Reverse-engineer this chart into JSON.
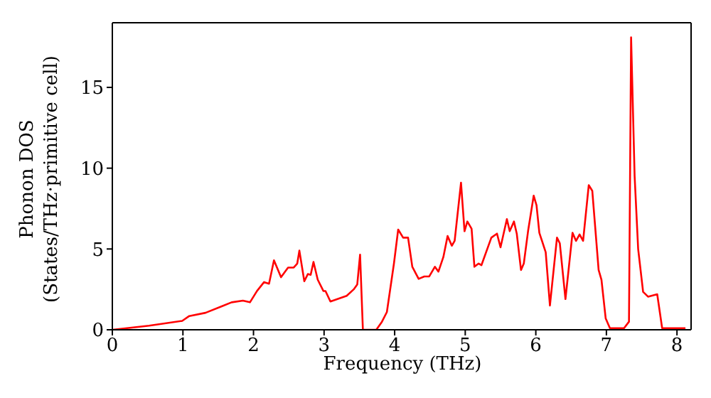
{
  "chart_data": {
    "type": "line",
    "xlabel": "Frequency (THz)",
    "ylabel": "Phonon DOS\n(States/THz·primitive cell)",
    "x": [
      0,
      0.52,
      0.99,
      1.09,
      1.32,
      1.55,
      1.69,
      1.85,
      1.95,
      2.05,
      2.15,
      2.22,
      2.29,
      2.39,
      2.49,
      2.57,
      2.62,
      2.65,
      2.72,
      2.77,
      2.81,
      2.85,
      2.91,
      2.99,
      3.02,
      3.09,
      3.19,
      3.32,
      3.42,
      3.47,
      3.51,
      3.55,
      3.74,
      3.82,
      3.89,
      3.99,
      4.05,
      4.12,
      4.19,
      4.25,
      4.34,
      4.42,
      4.49,
      4.57,
      4.62,
      4.69,
      4.75,
      4.81,
      4.85,
      4.94,
      4.99,
      5.03,
      5.09,
      5.13,
      5.19,
      5.23,
      5.37,
      5.45,
      5.5,
      5.59,
      5.63,
      5.69,
      5.73,
      5.79,
      5.83,
      5.89,
      5.97,
      6.01,
      6.05,
      6.14,
      6.2,
      6.3,
      6.34,
      6.42,
      6.52,
      6.57,
      6.62,
      6.67,
      6.75,
      6.8,
      6.89,
      6.93,
      6.99,
      7.05,
      7.25,
      7.32,
      7.35,
      7.4,
      7.45,
      7.52,
      7.59,
      7.72,
      7.79,
      8.12
    ],
    "series": [
      {
        "color": "#ff0000",
        "values": [
          0,
          0.25,
          0.55,
          0.85,
          1.05,
          1.45,
          1.7,
          1.8,
          1.7,
          2.4,
          2.95,
          2.85,
          4.3,
          3.25,
          3.85,
          3.85,
          4.1,
          4.9,
          3.0,
          3.45,
          3.4,
          4.2,
          3.1,
          2.4,
          2.4,
          1.75,
          1.9,
          2.1,
          2.5,
          2.8,
          4.65,
          0,
          0,
          0.5,
          1.1,
          4.1,
          6.2,
          5.7,
          5.7,
          3.9,
          3.15,
          3.3,
          3.3,
          3.9,
          3.6,
          4.5,
          5.8,
          5.2,
          5.5,
          9.1,
          6.1,
          6.7,
          6.25,
          3.9,
          4.1,
          4.0,
          5.7,
          5.95,
          5.1,
          6.85,
          6.1,
          6.7,
          5.95,
          3.7,
          4.1,
          6.1,
          8.3,
          7.7,
          6.0,
          4.8,
          1.5,
          5.7,
          5.35,
          1.9,
          6.0,
          5.5,
          5.9,
          5.5,
          8.95,
          8.6,
          3.7,
          3.1,
          0.7,
          0.1,
          0.1,
          0.5,
          18.1,
          9.5,
          5.0,
          2.35,
          2.05,
          2.2,
          0.1,
          0.1
        ]
      }
    ],
    "xlim": [
      0,
      8.2
    ],
    "xticks": [
      0,
      1,
      2,
      3,
      4,
      5,
      6,
      7,
      8
    ],
    "ylim": [
      0,
      19
    ],
    "yticks": [
      0,
      5,
      10,
      15
    ],
    "grid": false,
    "legend": false,
    "marker": "none",
    "line_style": "solid"
  }
}
